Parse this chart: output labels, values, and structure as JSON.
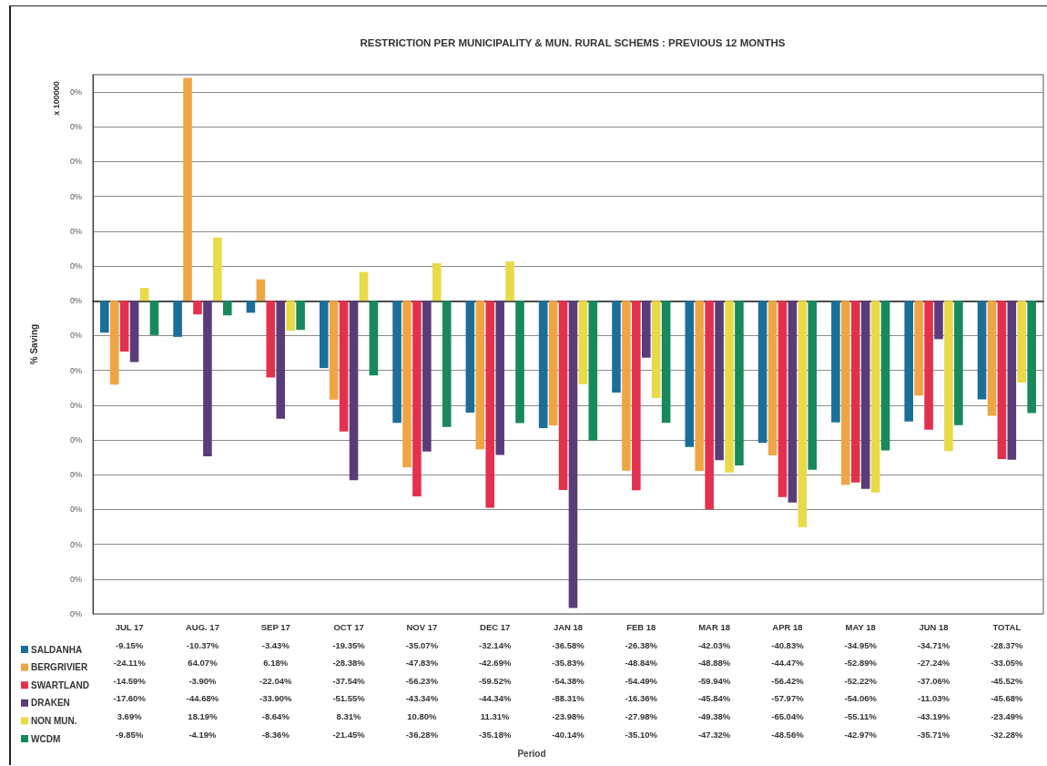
{
  "chart_data": {
    "type": "bar",
    "title": "RESTRICTION PER MUNICIPALITY & MUN. RURAL SCHEMS : PREVIOUS 12 MONTHS",
    "annotations": [
      "x 100000",
      "% Saving",
      "Period",
      "0%",
      "0%",
      "0%",
      "0%",
      "0%",
      "0%",
      "0%",
      "0%",
      "0%",
      "0%",
      "0%",
      "0%",
      "0%",
      "0%",
      "0%",
      "0%"
    ],
    "categories": [
      "JUL 17",
      "AUG. 17",
      "SEP 17",
      "OCT 17",
      "NOV 17",
      "DEC 17",
      "JAN 18",
      "FEB 18",
      "MAR 18",
      "APR 18",
      "MAY 18",
      "JUN 18",
      "TOTAL"
    ],
    "series": [
      {
        "name": "SALDANHA",
        "color": "#1b6e98",
        "values": [
          -9.15,
          -10.37,
          -3.43,
          -19.35,
          -35.07,
          -32.14,
          -36.58,
          -26.38,
          -42.03,
          -40.83,
          -34.95,
          -34.71,
          -28.37
        ],
        "value_labels": [
          "-9.15%",
          "-10.37%",
          "-3.43%",
          "-19.35%",
          "-35.07%",
          "-32.14%",
          "-36.58%",
          "-26.38%",
          "-42.03%",
          "-40.83%",
          "-34.95%",
          "-34.71%",
          "-28.37%"
        ]
      },
      {
        "name": "BERGRIVIER",
        "color": "#f0a544",
        "values": [
          -24.11,
          64.07,
          6.18,
          -28.38,
          -47.83,
          -42.69,
          -35.83,
          -48.84,
          -48.88,
          -44.47,
          -52.89,
          -27.24,
          -33.05
        ],
        "value_labels": [
          "-24.11%",
          "64.07%",
          "6.18%",
          "-28.38%",
          "-47.83%",
          "-42.69%",
          "-35.83%",
          "-48.84%",
          "-48.88%",
          "-44.47%",
          "-52.89%",
          "-27.24%",
          "-33.05%"
        ]
      },
      {
        "name": "SWARTLAND",
        "color": "#e3314d",
        "values": [
          -14.59,
          -3.9,
          -22.04,
          -37.54,
          -56.23,
          -59.52,
          -54.38,
          -54.49,
          -59.94,
          -56.42,
          -52.22,
          -37.06,
          -45.52
        ],
        "value_labels": [
          "-14.59%",
          "-3.90%",
          "-22.04%",
          "-37.54%",
          "-56.23%",
          "-59.52%",
          "-54.38%",
          "-54.49%",
          "-59.94%",
          "-56.42%",
          "-52.22%",
          "-37.06%",
          "-45.52%"
        ]
      },
      {
        "name": "DRAKEN",
        "color": "#5a3c78",
        "values": [
          -17.6,
          -44.68,
          -33.9,
          -51.55,
          -43.34,
          -44.34,
          -88.31,
          -16.36,
          -45.84,
          -57.97,
          -54.06,
          -11.03,
          -45.68
        ],
        "value_labels": [
          "-17.60%",
          "-44.68%",
          "-33.90%",
          "-51.55%",
          "-43.34%",
          "-44.34%",
          "-88.31%",
          "-16.36%",
          "-45.84%",
          "-57.97%",
          "-54.06%",
          "-11.03%",
          "-45.68%"
        ]
      },
      {
        "name": "NON MUN.",
        "color": "#e8da48",
        "values": [
          3.69,
          18.19,
          -8.64,
          8.31,
          10.8,
          11.31,
          -23.98,
          -27.98,
          -49.38,
          -65.04,
          -55.11,
          -43.19,
          -23.49
        ],
        "value_labels": [
          "3.69%",
          "18.19%",
          "-8.64%",
          "8.31%",
          "10.80%",
          "11.31%",
          "-23.98%",
          "-27.98%",
          "-49.38%",
          "-65.04%",
          "-55.11%",
          "-43.19%",
          "-23.49%"
        ]
      },
      {
        "name": "WCDM",
        "color": "#17895d",
        "values": [
          -9.85,
          -4.19,
          -8.36,
          -21.45,
          -36.28,
          -35.18,
          -40.14,
          -35.1,
          -47.32,
          -48.56,
          -42.97,
          -35.71,
          -32.28
        ],
        "value_labels": [
          "-9.85%",
          "-4.19%",
          "-8.36%",
          "-21.45%",
          "-36.28%",
          "-35.18%",
          "-40.14%",
          "-35.10%",
          "-47.32%",
          "-48.56%",
          "-42.97%",
          "-35.71%",
          "-32.28%"
        ]
      }
    ],
    "ylim": [
      -90,
      65
    ],
    "yticks": [
      {
        "value": -90,
        "label": null
      },
      {
        "value": -80,
        "label": null
      },
      {
        "value": -70,
        "label": null
      },
      {
        "value": -60,
        "label": null
      },
      {
        "value": -50,
        "label": null
      },
      {
        "value": -40,
        "label": null
      },
      {
        "value": -30,
        "label": null
      },
      {
        "value": -20,
        "label": null
      },
      {
        "value": -10,
        "label": null
      },
      {
        "value": 0,
        "label": null
      },
      {
        "value": 10,
        "label": null
      },
      {
        "value": 20,
        "label": null
      },
      {
        "value": 30,
        "label": null
      },
      {
        "value": 40,
        "label": null
      },
      {
        "value": 50,
        "label": null
      },
      {
        "value": 60,
        "label": null
      }
    ],
    "tick_labels": "x",
    "grid": "y",
    "legend": "bottom left"
  }
}
